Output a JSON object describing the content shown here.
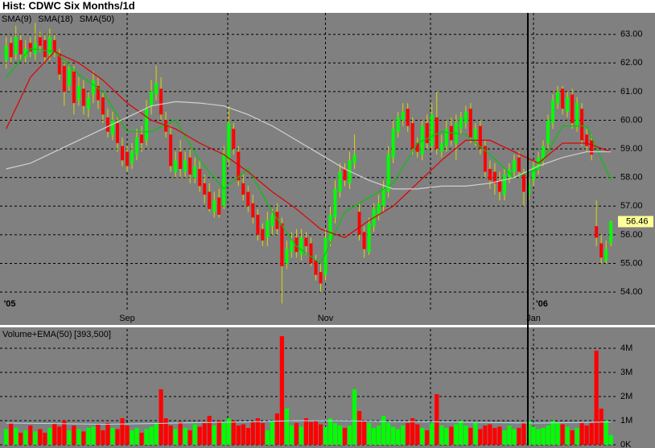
{
  "chart_data": [
    {
      "type": "candlestick",
      "title": "Hist: CDWC Six Months/1d",
      "categories": [
        "'05",
        null,
        null,
        null,
        null,
        null,
        null,
        null,
        null,
        null,
        null,
        null,
        null,
        null,
        null,
        null,
        null,
        null,
        null,
        null,
        null,
        null,
        null,
        null,
        null,
        "Sep",
        null,
        null,
        null,
        null,
        null,
        null,
        null,
        null,
        null,
        null,
        null,
        null,
        null,
        null,
        null,
        null,
        null,
        null,
        null,
        null,
        null,
        null,
        null,
        null,
        null,
        null,
        null,
        null,
        null,
        null,
        null,
        null,
        null,
        null,
        null,
        null,
        null,
        null,
        null,
        null,
        "Nov",
        null,
        null,
        null,
        null,
        null,
        null,
        null,
        null,
        null,
        null,
        null,
        null,
        null,
        null,
        null,
        null,
        null,
        null,
        null,
        null,
        null,
        null,
        null,
        null,
        null,
        null,
        null,
        null,
        null,
        null,
        null,
        null,
        null,
        null,
        null,
        null,
        null,
        null,
        null,
        null,
        null,
        null,
        "Jan",
        "'06",
        null,
        null,
        null,
        null,
        null,
        null,
        null,
        null,
        null,
        null,
        null,
        null,
        null,
        null,
        null
      ],
      "open": [
        62.1,
        62.7,
        62.3,
        62.8,
        62.2,
        62.7,
        62.3,
        62.9,
        62.8,
        62.3,
        62.8,
        62.3,
        61.9,
        61.2,
        61.7,
        60.7,
        61.1,
        60.4,
        60.9,
        61.2,
        60.8,
        60.1,
        59.5,
        59.9,
        59.1,
        58.9,
        58.5,
        58.8,
        59.5,
        59.3,
        60.5,
        60.9,
        61.1,
        60.0,
        59.5,
        58.2,
        58.9,
        58.2,
        58.7,
        58.0,
        58.3,
        57.8,
        57.5,
        56.8,
        57.3,
        57.0,
        58.6,
        59.7,
        58.9,
        57.8,
        57.5,
        57.1,
        56.7,
        56.2,
        55.9,
        56.3,
        56.8,
        56.4,
        55.0,
        55.4,
        55.9,
        55.3,
        55.9,
        55.7,
        55.1,
        54.7,
        54.6,
        55.8,
        56.6,
        57.5,
        58.3,
        57.8,
        58.5,
        56.8,
        56.1,
        55.4,
        56.3,
        56.7,
        57.0,
        57.5,
        58.7,
        59.6,
        60.0,
        60.4,
        59.9,
        59.2,
        58.8,
        59.9,
        59.1,
        60.1,
        58.9,
        59.1,
        59.8,
        59.2,
        59.7,
        59.9,
        60.4,
        59.3,
        59.8,
        59.1,
        58.3,
        58.2,
        57.9,
        57.4,
        58.0,
        58.2,
        58.7,
        58.1,
        57.4,
        57.9,
        58.3,
        58.6,
        59.2,
        59.9,
        60.6,
        61.1,
        60.3,
        60.9,
        59.8,
        60.4,
        59.5,
        59.3,
        56.3,
        55.7,
        55.1,
        55.7
      ],
      "high": [
        62.9,
        62.9,
        63.3,
        63.0,
        62.8,
        62.9,
        63.4,
        63.1,
        63.0,
        63.2,
        63.0,
        62.5,
        62.1,
        62.0,
        61.9,
        61.5,
        61.4,
        61.0,
        61.7,
        61.5,
        61.0,
        60.4,
        60.3,
        60.1,
        59.4,
        59.1,
        59.2,
        59.7,
        59.8,
        60.7,
        61.4,
        61.9,
        61.5,
        60.3,
        59.8,
        58.9,
        59.3,
        58.9,
        59.0,
        58.7,
        58.6,
        58.1,
        57.8,
        57.5,
        57.6,
        59.1,
        60.5,
        59.9,
        59.1,
        58.1,
        57.7,
        57.4,
        56.9,
        56.4,
        56.8,
        56.9,
        57.1,
        56.6,
        55.8,
        56.1,
        56.2,
        56.2,
        56.1,
        55.9,
        55.3,
        55.0,
        56.2,
        57.0,
        57.9,
        58.5,
        58.5,
        58.9,
        59.5,
        57.1,
        56.3,
        56.6,
        57.1,
        57.4,
        57.9,
        59.1,
        60.0,
        60.3,
        60.6,
        60.6,
        60.1,
        59.4,
        60.0,
        60.2,
        60.6,
        61.0,
        59.5,
        60.0,
        60.1,
        60.2,
        60.3,
        60.5,
        60.6,
        59.9,
        60.0,
        59.3,
        58.6,
        58.5,
        58.2,
        58.3,
        58.5,
        58.8,
        58.9,
        58.3,
        58.0,
        58.6,
        58.9,
        59.3,
        60.2,
        60.9,
        61.2,
        61.2,
        61.0,
        61.1,
        60.8,
        60.6,
        59.7,
        59.5,
        57.2,
        56.0,
        55.8,
        56.5
      ],
      "low": [
        61.8,
        62.0,
        62.1,
        62.1,
        62.0,
        62.2,
        62.1,
        62.4,
        62.0,
        62.1,
        62.2,
        61.4,
        60.5,
        61.0,
        60.2,
        60.5,
        60.2,
        60.1,
        60.6,
        60.4,
        59.9,
        59.4,
        59.3,
        58.9,
        58.4,
        58.2,
        58.3,
        58.6,
        58.9,
        59.1,
        60.2,
        60.7,
        60.0,
        59.4,
        58.2,
        58.0,
        58.0,
        58.0,
        57.8,
        57.8,
        57.5,
        57.1,
        56.8,
        56.6,
        56.6,
        56.9,
        58.4,
        58.8,
        57.7,
        57.2,
        56.8,
        56.4,
        55.8,
        55.6,
        55.6,
        56.0,
        56.0,
        53.6,
        54.8,
        55.2,
        55.2,
        55.1,
        55.3,
        54.9,
        54.4,
        54.0,
        54.4,
        55.6,
        56.4,
        57.3,
        57.7,
        57.6,
        58.3,
        55.8,
        55.2,
        55.3,
        56.1,
        56.5,
        56.8,
        57.3,
        58.5,
        59.4,
        59.8,
        59.6,
        58.8,
        58.7,
        58.6,
        59.0,
        58.9,
        58.8,
        58.7,
        58.9,
        59.1,
        58.6,
        59.5,
        59.7,
        59.2,
        59.1,
        58.8,
        58.0,
        57.6,
        57.4,
        57.2,
        57.2,
        57.8,
        58.0,
        58.0,
        57.0,
        57.2,
        57.7,
        58.1,
        58.4,
        59.0,
        59.7,
        60.4,
        60.2,
        60.1,
        59.7,
        59.6,
        59.1,
        58.9,
        58.6,
        55.6,
        55.0,
        55.0,
        55.6
      ],
      "close": [
        62.6,
        62.2,
        62.9,
        62.3,
        62.5,
        62.4,
        62.7,
        62.6,
        62.2,
        62.9,
        62.4,
        61.6,
        61.0,
        61.8,
        60.6,
        61.2,
        60.5,
        60.8,
        61.4,
        60.7,
        60.2,
        59.6,
        60.0,
        59.2,
        58.6,
        58.4,
        58.9,
        59.4,
        59.2,
        60.4,
        61.0,
        61.3,
        60.2,
        59.6,
        58.4,
        58.6,
        58.3,
        58.6,
        58.1,
        58.4,
        57.7,
        57.4,
        56.9,
        57.2,
        56.7,
        58.8,
        59.9,
        59.0,
        57.9,
        57.4,
        57.0,
        56.6,
        56.0,
        55.8,
        56.5,
        56.7,
        56.2,
        54.9,
        55.5,
        55.8,
        55.4,
        55.9,
        55.6,
        55.0,
        54.6,
        54.3,
        55.9,
        56.7,
        57.6,
        58.2,
        57.9,
        58.6,
        58.8,
        56.0,
        55.5,
        56.4,
        56.9,
        57.1,
        57.6,
        58.8,
        59.7,
        60.1,
        60.3,
        59.8,
        59.0,
        58.9,
        59.8,
        59.2,
        60.2,
        59.0,
        59.2,
        59.7,
        59.3,
        59.9,
        60.1,
        60.3,
        59.4,
        59.7,
        59.0,
        58.2,
        57.9,
        57.8,
        57.5,
        58.1,
        58.3,
        58.6,
        58.2,
        57.5,
        57.8,
        58.4,
        58.7,
        59.1,
        60.0,
        60.7,
        61.0,
        60.4,
        60.8,
        59.9,
        60.6,
        59.3,
        59.1,
        58.8,
        55.9,
        55.2,
        55.5,
        56.46
      ],
      "up_color": "#00ff00",
      "down_color": "#ff0000",
      "wick_color": "#d8d800",
      "last_price": 56.46,
      "series": [
        {
          "name": "SMA(9)",
          "color": "#00c800",
          "x": [
            0,
            5,
            10,
            15,
            20,
            25,
            30,
            35,
            40,
            45,
            50,
            55,
            60,
            65,
            70,
            75,
            80,
            85,
            90,
            95,
            100,
            105,
            110,
            115,
            120,
            125
          ],
          "values": [
            61.5,
            62.5,
            62.4,
            61.6,
            61.0,
            59.6,
            59.6,
            60.0,
            58.6,
            57.6,
            58.3,
            56.8,
            55.6,
            55.0,
            56.8,
            57.3,
            57.8,
            59.2,
            59.6,
            59.5,
            58.8,
            58.0,
            58.3,
            59.8,
            59.8,
            57.9
          ]
        },
        {
          "name": "SMA(18)",
          "color": "#e00000",
          "x": [
            0,
            5,
            10,
            15,
            20,
            25,
            30,
            35,
            40,
            45,
            50,
            55,
            60,
            65,
            70,
            75,
            80,
            85,
            90,
            95,
            100,
            105,
            110,
            115,
            120,
            125
          ],
          "values": [
            59.7,
            61.5,
            62.4,
            62.0,
            61.4,
            60.6,
            60.0,
            59.7,
            59.2,
            58.8,
            58.2,
            57.5,
            56.9,
            56.2,
            55.9,
            56.5,
            57.0,
            57.8,
            58.6,
            59.3,
            59.3,
            58.9,
            58.5,
            59.2,
            59.2,
            58.9
          ]
        },
        {
          "name": "SMA(50)",
          "color": "#d0d0d0",
          "x": [
            0,
            5,
            10,
            15,
            20,
            25,
            30,
            35,
            40,
            45,
            50,
            55,
            60,
            65,
            70,
            75,
            80,
            85,
            90,
            95,
            100,
            105,
            110,
            115,
            120,
            125
          ],
          "values": [
            58.3,
            58.5,
            58.9,
            59.3,
            59.7,
            60.1,
            60.5,
            60.65,
            60.6,
            60.5,
            60.2,
            59.8,
            59.3,
            58.8,
            58.3,
            57.9,
            57.6,
            57.6,
            57.7,
            57.7,
            57.8,
            58.0,
            58.4,
            58.7,
            58.9,
            58.9
          ]
        }
      ],
      "ylim": [
        53.3,
        63.75
      ],
      "yticks": [
        {
          "value": 54,
          "label": "54.00"
        },
        {
          "value": 55,
          "label": "55.00"
        },
        {
          "value": 56,
          "label": "56.00"
        },
        {
          "value": 57,
          "label": "57.00"
        },
        {
          "value": 58,
          "label": "58.00"
        },
        {
          "value": 59,
          "label": "59.00"
        },
        {
          "value": 60,
          "label": "60.00"
        },
        {
          "value": 61,
          "label": "61.00"
        },
        {
          "value": 62,
          "label": "62.00"
        },
        {
          "value": 63,
          "label": "63.00"
        }
      ],
      "grid": true
    },
    {
      "type": "bar",
      "title": "Volume+EMA(50)",
      "subtitle": "[393,500]",
      "values": [
        650000,
        900000,
        700000,
        500000,
        600000,
        800000,
        550000,
        650000,
        500000,
        700000,
        900000,
        750000,
        1000000,
        600000,
        800000,
        650000,
        550000,
        700000,
        750000,
        850000,
        600000,
        900000,
        700000,
        650000,
        1100000,
        800000,
        600000,
        700000,
        500000,
        650000,
        750000,
        900000,
        2300000,
        1100000,
        800000,
        650000,
        950000,
        700000,
        600000,
        850000,
        750000,
        900000,
        1200000,
        800000,
        1000000,
        900000,
        1100000,
        1000000,
        800000,
        850000,
        700000,
        950000,
        1100000,
        900000,
        600000,
        1000000,
        1300000,
        4500000,
        1500000,
        800000,
        900000,
        750000,
        1100000,
        950000,
        1000000,
        850000,
        750000,
        1100000,
        900000,
        800000,
        700000,
        800000,
        2300000,
        1400000,
        1000000,
        900000,
        700000,
        800000,
        1200000,
        900000,
        750000,
        650000,
        800000,
        900000,
        1100000,
        850000,
        700000,
        600000,
        900000,
        2100000,
        800000,
        700000,
        750000,
        850000,
        1000000,
        800000,
        700000,
        900000,
        650000,
        800000,
        850000,
        700000,
        750000,
        600000,
        800000,
        650000,
        700000,
        900000,
        1000000,
        750000,
        650000,
        700000,
        800000,
        1000000,
        900000,
        850000,
        750000,
        600000,
        700000,
        900000,
        800000,
        900000,
        3900000,
        1500000,
        1000000,
        400000
      ],
      "series": [
        {
          "color": "#a8e0f0",
          "x": [
            0,
            10,
            20,
            30,
            40,
            50,
            60,
            70,
            80,
            90,
            100,
            110,
            120,
            125
          ],
          "values": [
            900000,
            880000,
            850000,
            880000,
            920000,
            950000,
            1000000,
            990000,
            960000,
            950000,
            920000,
            900000,
            930000,
            950000
          ]
        }
      ],
      "ylim": [
        0,
        4800000
      ],
      "yticks": [
        {
          "value": 0,
          "label": "0K"
        },
        {
          "value": 1000000,
          "label": "1M"
        },
        {
          "value": 2000000,
          "label": "2M"
        },
        {
          "value": 3000000,
          "label": "3M"
        },
        {
          "value": 4000000,
          "label": "4M"
        }
      ],
      "grid": true
    }
  ]
}
